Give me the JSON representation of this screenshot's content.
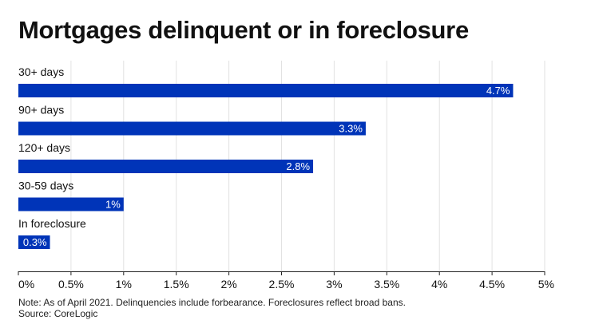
{
  "title": "Mortgages delinquent or in foreclosure",
  "note": "Note: As of April 2021. Delinquencies include forbearance. Foreclosures reflect broad bans.",
  "source": "Source: CoreLogic",
  "colors": {
    "bar": "#0034b8",
    "grid": "#e2e2e2",
    "axis": "#222222",
    "text": "#111111"
  },
  "chart_data": {
    "type": "bar",
    "orientation": "horizontal",
    "title": "Mortgages delinquent or in foreclosure",
    "categories": [
      "30+ days",
      "90+ days",
      "120+ days",
      "30-59 days",
      "In foreclosure"
    ],
    "values": [
      4.7,
      3.3,
      2.8,
      1.0,
      0.3
    ],
    "data_labels": [
      "4.7%",
      "3.3%",
      "2.8%",
      "1%",
      "0.3%"
    ],
    "xlim": [
      0,
      5
    ],
    "x_ticks": [
      0,
      0.5,
      1,
      1.5,
      2,
      2.5,
      3,
      3.5,
      4,
      4.5,
      5
    ],
    "x_tick_labels": [
      "0%",
      "0.5%",
      "1%",
      "1.5%",
      "2%",
      "2.5%",
      "3%",
      "3.5%",
      "4%",
      "4.5%",
      "5%"
    ],
    "xlabel": "",
    "ylabel": "",
    "grid": true
  }
}
